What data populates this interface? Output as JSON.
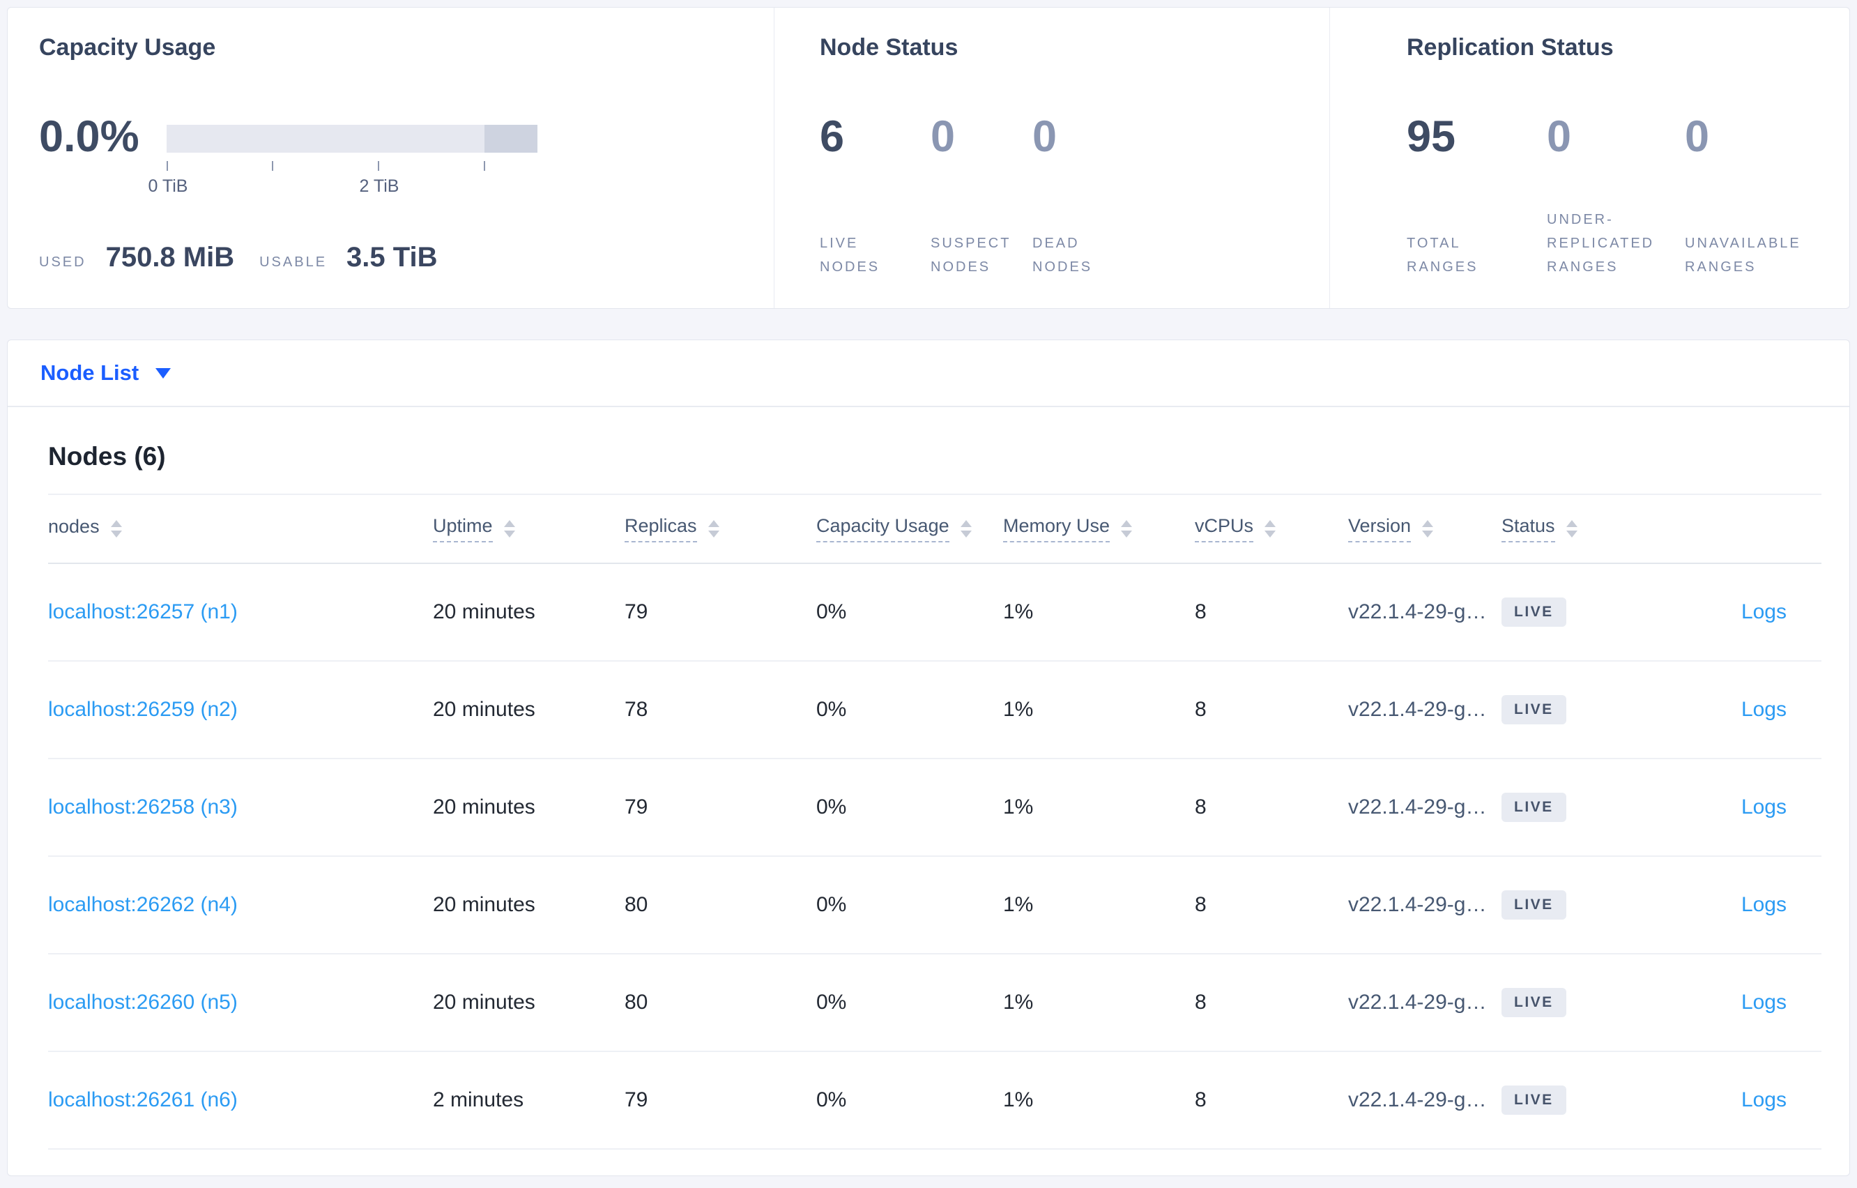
{
  "colors": {
    "page_background": "#f4f5fa",
    "selector_blue": "#1b5eff",
    "link_blue": "#2b9bf3",
    "stat_dark": "#3e4b63",
    "stat_muted": "#8a96b2",
    "badge_background": "#e8ebf2"
  },
  "summary": {
    "capacity": {
      "title": "Capacity Usage",
      "percent": "0.0%",
      "tick_labels": [
        "0 TiB",
        "2 TiB"
      ],
      "used_label": "USED",
      "used_value": "750.8 MiB",
      "usable_label": "USABLE",
      "usable_value": "3.5 TiB"
    },
    "node_status": {
      "title": "Node Status",
      "stats": [
        {
          "value": "6",
          "label": "LIVE\nNODES"
        },
        {
          "value": "0",
          "label": "SUSPECT\nNODES"
        },
        {
          "value": "0",
          "label": "DEAD\nNODES"
        }
      ]
    },
    "replication": {
      "title": "Replication Status",
      "stats": [
        {
          "value": "95",
          "label": "TOTAL\nRANGES"
        },
        {
          "value": "0",
          "label": "UNDER-\nREPLICATED\nRANGES"
        },
        {
          "value": "0",
          "label": "UNAVAILABLE\nRANGES"
        }
      ]
    }
  },
  "node_list": {
    "selector_label": "Node List"
  },
  "table": {
    "heading": "Nodes (6)",
    "columns": [
      {
        "label": "nodes"
      },
      {
        "label": "Uptime"
      },
      {
        "label": "Replicas"
      },
      {
        "label": "Capacity Usage"
      },
      {
        "label": "Memory Use"
      },
      {
        "label": "vCPUs"
      },
      {
        "label": "Version"
      },
      {
        "label": "Status"
      }
    ],
    "rows": [
      {
        "node": "localhost:26257 (n1)",
        "uptime": "20 minutes",
        "replicas": "79",
        "capacity": "0%",
        "memory": "1%",
        "vcpus": "8",
        "version": "v22.1.4-29-g…",
        "status": "LIVE",
        "logs": "Logs"
      },
      {
        "node": "localhost:26259 (n2)",
        "uptime": "20 minutes",
        "replicas": "78",
        "capacity": "0%",
        "memory": "1%",
        "vcpus": "8",
        "version": "v22.1.4-29-g…",
        "status": "LIVE",
        "logs": "Logs"
      },
      {
        "node": "localhost:26258 (n3)",
        "uptime": "20 minutes",
        "replicas": "79",
        "capacity": "0%",
        "memory": "1%",
        "vcpus": "8",
        "version": "v22.1.4-29-g…",
        "status": "LIVE",
        "logs": "Logs"
      },
      {
        "node": "localhost:26262 (n4)",
        "uptime": "20 minutes",
        "replicas": "80",
        "capacity": "0%",
        "memory": "1%",
        "vcpus": "8",
        "version": "v22.1.4-29-g…",
        "status": "LIVE",
        "logs": "Logs"
      },
      {
        "node": "localhost:26260 (n5)",
        "uptime": "20 minutes",
        "replicas": "80",
        "capacity": "0%",
        "memory": "1%",
        "vcpus": "8",
        "version": "v22.1.4-29-g…",
        "status": "LIVE",
        "logs": "Logs"
      },
      {
        "node": "localhost:26261 (n6)",
        "uptime": "2 minutes",
        "replicas": "79",
        "capacity": "0%",
        "memory": "1%",
        "vcpus": "8",
        "version": "v22.1.4-29-g…",
        "status": "LIVE",
        "logs": "Logs"
      }
    ]
  }
}
